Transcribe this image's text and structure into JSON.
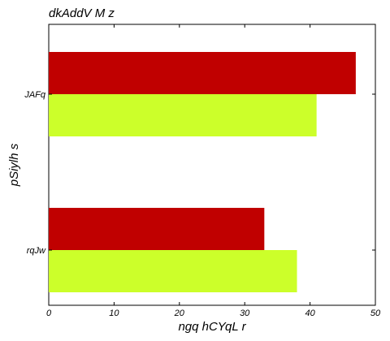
{
  "chart_data": {
    "type": "bar",
    "orientation": "horizontal",
    "title": "dkAddV M z",
    "xlabel": "ngq hCYqL r",
    "ylabel": "pSiylh s",
    "categories": [
      "JAFq",
      "rqJw"
    ],
    "series": [
      {
        "color": "#c00000",
        "values": [
          47,
          33
        ]
      },
      {
        "color": "#ccff2a",
        "values": [
          41,
          38
        ]
      }
    ],
    "xlim": [
      0,
      50
    ],
    "xticks": [
      "0",
      "10",
      "20",
      "30",
      "40",
      "50"
    ],
    "grid": false,
    "legend": "none"
  }
}
